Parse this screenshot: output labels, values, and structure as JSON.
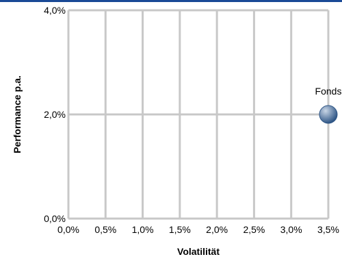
{
  "chart_data": {
    "type": "scatter",
    "xlabel": "Volatilität",
    "ylabel": "Performance p.a.",
    "xlim": [
      0,
      3.5
    ],
    "ylim": [
      0,
      4
    ],
    "x_ticks": [
      0,
      0.5,
      1,
      1.5,
      2,
      2.5,
      3,
      3.5
    ],
    "x_tick_labels": [
      "0,0%",
      "0,5%",
      "1,0%",
      "1,5%",
      "2,0%",
      "2,5%",
      "3,0%",
      "3,5%"
    ],
    "y_ticks": [
      0,
      2,
      4
    ],
    "y_tick_labels": [
      "0,0%",
      "2,0%",
      "4,0%"
    ],
    "grid": true,
    "points": [
      {
        "label": "Fonds",
        "x": 3.5,
        "y": 2.0
      }
    ],
    "colors": {
      "grid": "#c8c8c8",
      "point": "#2f5686",
      "point_highlight": "#c9d6e6",
      "top_rule": "#1a4a96"
    }
  }
}
